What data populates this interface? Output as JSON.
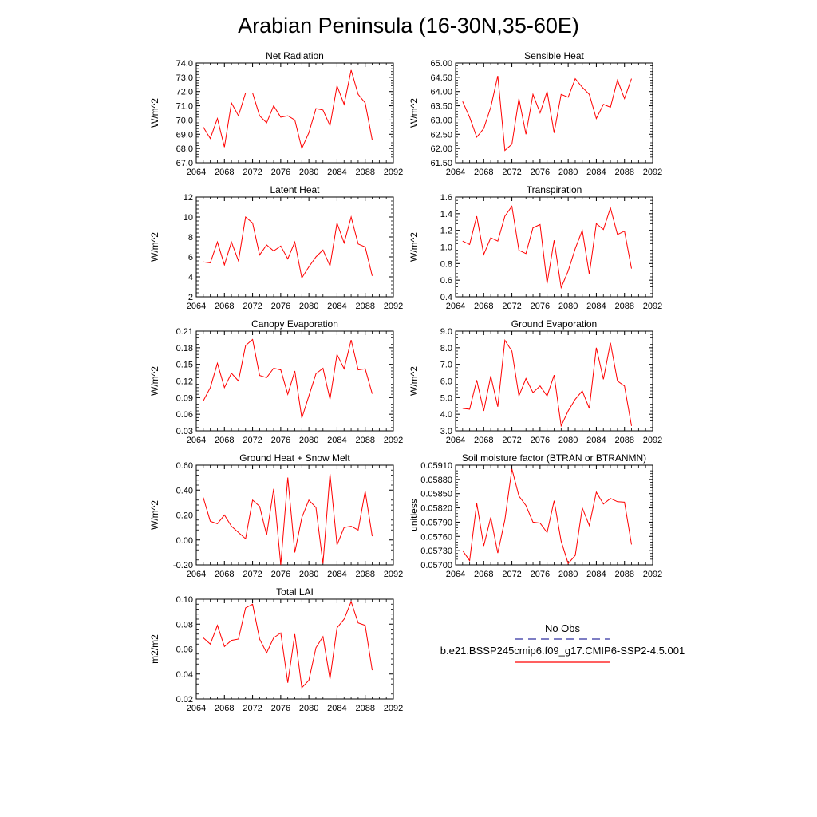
{
  "title": "Arabian Peninsula (16-30N,35-60E)",
  "years": [
    2065,
    2066,
    2067,
    2068,
    2069,
    2070,
    2071,
    2072,
    2073,
    2074,
    2075,
    2076,
    2077,
    2078,
    2079,
    2080,
    2081,
    2082,
    2083,
    2084,
    2085,
    2086,
    2087,
    2088,
    2089
  ],
  "line_color": "#ff0000",
  "legend": {
    "obs_label": "No Obs",
    "obs_color": "#3030a0",
    "case_label": "b.e21.BSSP245cmip6.f09_g17.CMIP6-SSP2-4.5.001",
    "case_color": "#ff0000"
  },
  "chart_data": [
    {
      "type": "line",
      "title": "Net Radiation",
      "ylabel": "W/m^2",
      "xlim": [
        2064,
        2092
      ],
      "xticks": [
        "2064",
        "2068",
        "2072",
        "2076",
        "2080",
        "2084",
        "2088",
        "2092"
      ],
      "ylim": [
        67.0,
        74.0
      ],
      "yticks": [
        "67.0",
        "68.0",
        "69.0",
        "70.0",
        "71.0",
        "72.0",
        "73.0",
        "74.0"
      ],
      "values": [
        69.5,
        68.7,
        70.1,
        68.1,
        71.2,
        70.3,
        71.9,
        71.9,
        70.3,
        69.8,
        71.0,
        70.2,
        70.3,
        70.0,
        68.0,
        69.1,
        70.8,
        70.7,
        69.6,
        72.4,
        71.1,
        73.5,
        71.8,
        71.2,
        68.6
      ]
    },
    {
      "type": "line",
      "title": "Sensible Heat",
      "ylabel": "W/m^2",
      "xlim": [
        2064,
        2092
      ],
      "xticks": [
        "2064",
        "2068",
        "2072",
        "2076",
        "2080",
        "2084",
        "2088",
        "2092"
      ],
      "ylim": [
        61.5,
        65.0
      ],
      "yticks": [
        "61.50",
        "62.00",
        "62.50",
        "63.00",
        "63.50",
        "64.00",
        "64.50",
        "65.00"
      ],
      "values": [
        63.65,
        63.1,
        62.4,
        62.7,
        63.45,
        64.55,
        61.93,
        62.15,
        63.75,
        62.5,
        63.9,
        63.25,
        64.0,
        62.55,
        63.9,
        63.8,
        64.45,
        64.15,
        63.9,
        63.05,
        63.55,
        63.45,
        64.4,
        63.75,
        64.45
      ]
    },
    {
      "type": "line",
      "title": "Latent Heat",
      "ylabel": "W/m^2",
      "xlim": [
        2064,
        2092
      ],
      "xticks": [
        "2064",
        "2068",
        "2072",
        "2076",
        "2080",
        "2084",
        "2088",
        "2092"
      ],
      "ylim": [
        2,
        12
      ],
      "yticks": [
        "2",
        "4",
        "6",
        "8",
        "10",
        "12"
      ],
      "values": [
        5.5,
        5.4,
        7.5,
        5.2,
        7.5,
        5.6,
        10.0,
        9.4,
        6.2,
        7.2,
        6.6,
        7.1,
        5.8,
        7.5,
        3.9,
        5.0,
        6.0,
        6.7,
        5.1,
        9.4,
        7.4,
        10.0,
        7.3,
        7.0,
        4.1
      ]
    },
    {
      "type": "line",
      "title": "Transpiration",
      "ylabel": "W/m^2",
      "xlim": [
        2064,
        2092
      ],
      "xticks": [
        "2064",
        "2068",
        "2072",
        "2076",
        "2080",
        "2084",
        "2088",
        "2092"
      ],
      "ylim": [
        0.4,
        1.6
      ],
      "yticks": [
        "0.4",
        "0.6",
        "0.8",
        "1.0",
        "1.2",
        "1.4",
        "1.6"
      ],
      "values": [
        1.07,
        1.03,
        1.37,
        0.91,
        1.11,
        1.07,
        1.37,
        1.49,
        0.96,
        0.92,
        1.23,
        1.27,
        0.56,
        1.08,
        0.51,
        0.71,
        0.98,
        1.2,
        0.67,
        1.28,
        1.21,
        1.47,
        1.15,
        1.19,
        0.74
      ]
    },
    {
      "type": "line",
      "title": "Canopy Evaporation",
      "ylabel": "W/m^2",
      "xlim": [
        2064,
        2092
      ],
      "xticks": [
        "2064",
        "2068",
        "2072",
        "2076",
        "2080",
        "2084",
        "2088",
        "2092"
      ],
      "ylim": [
        0.03,
        0.21
      ],
      "yticks": [
        "0.03",
        "0.06",
        "0.09",
        "0.12",
        "0.15",
        "0.18",
        "0.21"
      ],
      "values": [
        0.084,
        0.108,
        0.152,
        0.108,
        0.134,
        0.12,
        0.184,
        0.195,
        0.13,
        0.126,
        0.143,
        0.14,
        0.096,
        0.138,
        0.053,
        0.093,
        0.133,
        0.143,
        0.087,
        0.168,
        0.142,
        0.194,
        0.14,
        0.142,
        0.097
      ]
    },
    {
      "type": "line",
      "title": "Ground Evaporation",
      "ylabel": "W/m^2",
      "xlim": [
        2064,
        2092
      ],
      "xticks": [
        "2064",
        "2068",
        "2072",
        "2076",
        "2080",
        "2084",
        "2088",
        "2092"
      ],
      "ylim": [
        3.0,
        9.0
      ],
      "yticks": [
        "3.0",
        "4.0",
        "5.0",
        "6.0",
        "7.0",
        "8.0",
        "9.0"
      ],
      "values": [
        4.35,
        4.3,
        6.05,
        4.2,
        6.3,
        4.45,
        8.45,
        7.8,
        5.1,
        6.15,
        5.3,
        5.7,
        5.1,
        6.35,
        3.3,
        4.2,
        4.9,
        5.4,
        4.35,
        8.0,
        6.1,
        8.3,
        6.0,
        5.7,
        3.3
      ]
    },
    {
      "type": "line",
      "title": "Ground Heat + Snow Melt",
      "ylabel": "W/m^2",
      "xlim": [
        2064,
        2092
      ],
      "xticks": [
        "2064",
        "2068",
        "2072",
        "2076",
        "2080",
        "2084",
        "2088",
        "2092"
      ],
      "ylim": [
        -0.2,
        0.6
      ],
      "yticks": [
        "-0.20",
        "0.00",
        "0.20",
        "0.40",
        "0.60"
      ],
      "values": [
        0.34,
        0.15,
        0.13,
        0.2,
        0.11,
        0.06,
        0.01,
        0.32,
        0.27,
        0.04,
        0.41,
        -0.2,
        0.5,
        -0.1,
        0.18,
        0.32,
        0.26,
        -0.19,
        0.53,
        -0.04,
        0.1,
        0.11,
        0.08,
        0.39,
        0.03
      ]
    },
    {
      "type": "line",
      "title": "Soil moisture factor (BTRAN or BTRANMN)",
      "ylabel": "unitless",
      "xlim": [
        2064,
        2092
      ],
      "xticks": [
        "2064",
        "2068",
        "2072",
        "2076",
        "2080",
        "2084",
        "2088",
        "2092"
      ],
      "ylim": [
        0.057,
        0.0591
      ],
      "yticks": [
        "0.05700",
        "0.05730",
        "0.05760",
        "0.05790",
        "0.05820",
        "0.05850",
        "0.05880",
        "0.05910"
      ],
      "values": [
        0.0573,
        0.05709,
        0.0583,
        0.0574,
        0.058,
        0.05725,
        0.05795,
        0.05902,
        0.05845,
        0.05825,
        0.0579,
        0.05788,
        0.05768,
        0.05835,
        0.0575,
        0.05703,
        0.0572,
        0.0582,
        0.05783,
        0.05853,
        0.05828,
        0.0584,
        0.05833,
        0.05832,
        0.05743
      ]
    },
    {
      "type": "line",
      "title": "Total LAI",
      "ylabel": "m2/m2",
      "xlim": [
        2064,
        2092
      ],
      "xticks": [
        "2064",
        "2068",
        "2072",
        "2076",
        "2080",
        "2084",
        "2088",
        "2092"
      ],
      "ylim": [
        0.02,
        0.1
      ],
      "yticks": [
        "0.02",
        "0.04",
        "0.06",
        "0.08",
        "0.10"
      ],
      "values": [
        0.069,
        0.064,
        0.079,
        0.062,
        0.067,
        0.068,
        0.093,
        0.096,
        0.068,
        0.057,
        0.069,
        0.073,
        0.033,
        0.072,
        0.029,
        0.035,
        0.061,
        0.07,
        0.036,
        0.077,
        0.084,
        0.098,
        0.081,
        0.079,
        0.043
      ]
    }
  ]
}
